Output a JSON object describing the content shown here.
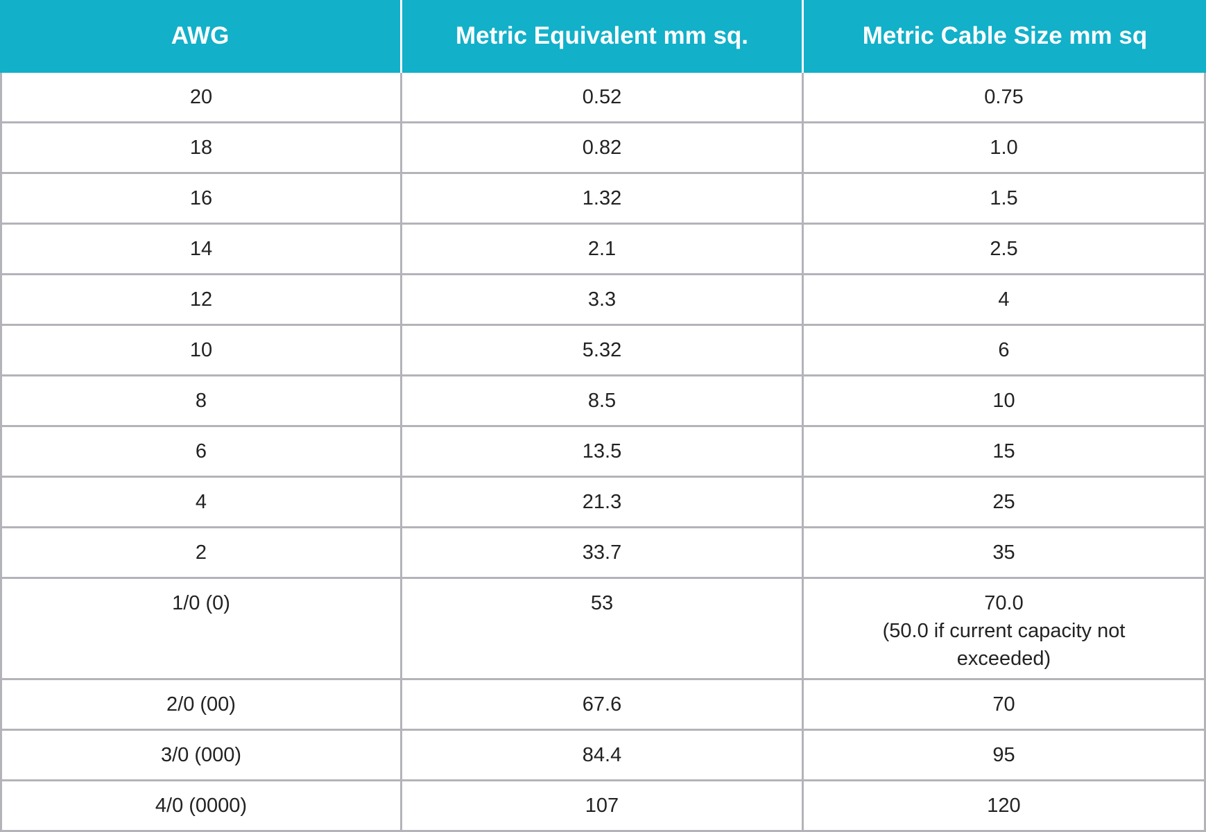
{
  "table": {
    "header": [
      "AWG",
      "Metric Equivalent mm sq.",
      "Metric Cable Size mm sq"
    ],
    "rows": [
      [
        "20",
        "0.52",
        "0.75"
      ],
      [
        "18",
        "0.82",
        "1.0"
      ],
      [
        "16",
        "1.32",
        "1.5"
      ],
      [
        "14",
        "2.1",
        "2.5"
      ],
      [
        "12",
        "3.3",
        "4"
      ],
      [
        "10",
        "5.32",
        "6"
      ],
      [
        "8",
        "8.5",
        "10"
      ],
      [
        "6",
        "13.5",
        "15"
      ],
      [
        "4",
        "21.3",
        "25"
      ],
      [
        "2",
        "33.7",
        "35"
      ],
      [
        "1/0 (0)",
        "53",
        "70.0\n(50.0 if current capacity not\nexceeded)"
      ],
      [
        "2/0 (00)",
        "67.6",
        "70"
      ],
      [
        "3/0 (000)",
        "84.4",
        "95"
      ],
      [
        "4/0 (0000)",
        "107",
        "120"
      ]
    ]
  }
}
